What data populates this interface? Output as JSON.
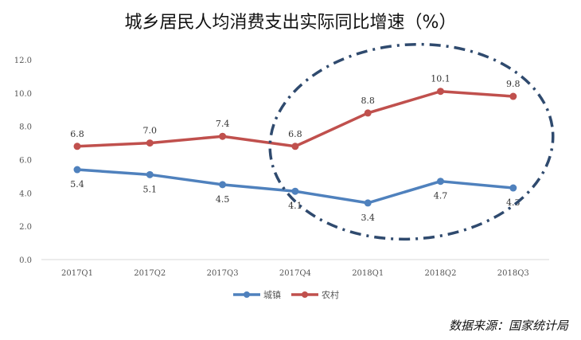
{
  "chart_data": {
    "type": "line",
    "title": "城乡居民人均消费支出实际同比增速（%）",
    "categories": [
      "2017Q1",
      "2017Q2",
      "2017Q3",
      "2017Q4",
      "2018Q1",
      "2018Q2",
      "2018Q3"
    ],
    "series": [
      {
        "name": "城镇",
        "values": [
          5.4,
          5.1,
          4.5,
          4.1,
          3.4,
          4.7,
          4.3
        ],
        "color": "#4f81bd"
      },
      {
        "name": "农村",
        "values": [
          6.8,
          7.0,
          7.4,
          6.8,
          8.8,
          10.1,
          9.8
        ],
        "color": "#c0504d"
      }
    ],
    "ylim": [
      0,
      12
    ],
    "yticks": [
      "0.0",
      "2.0",
      "4.0",
      "6.0",
      "8.0",
      "10.0",
      "12.0"
    ],
    "grid": false,
    "legend": "bottom",
    "annotation": {
      "shape": "dash-dot ellipse",
      "highlights": [
        "2017Q4",
        "2018Q1",
        "2018Q2",
        "2018Q3"
      ],
      "color": "#2f4a6e"
    }
  },
  "source": "数据来源：国家统计局"
}
